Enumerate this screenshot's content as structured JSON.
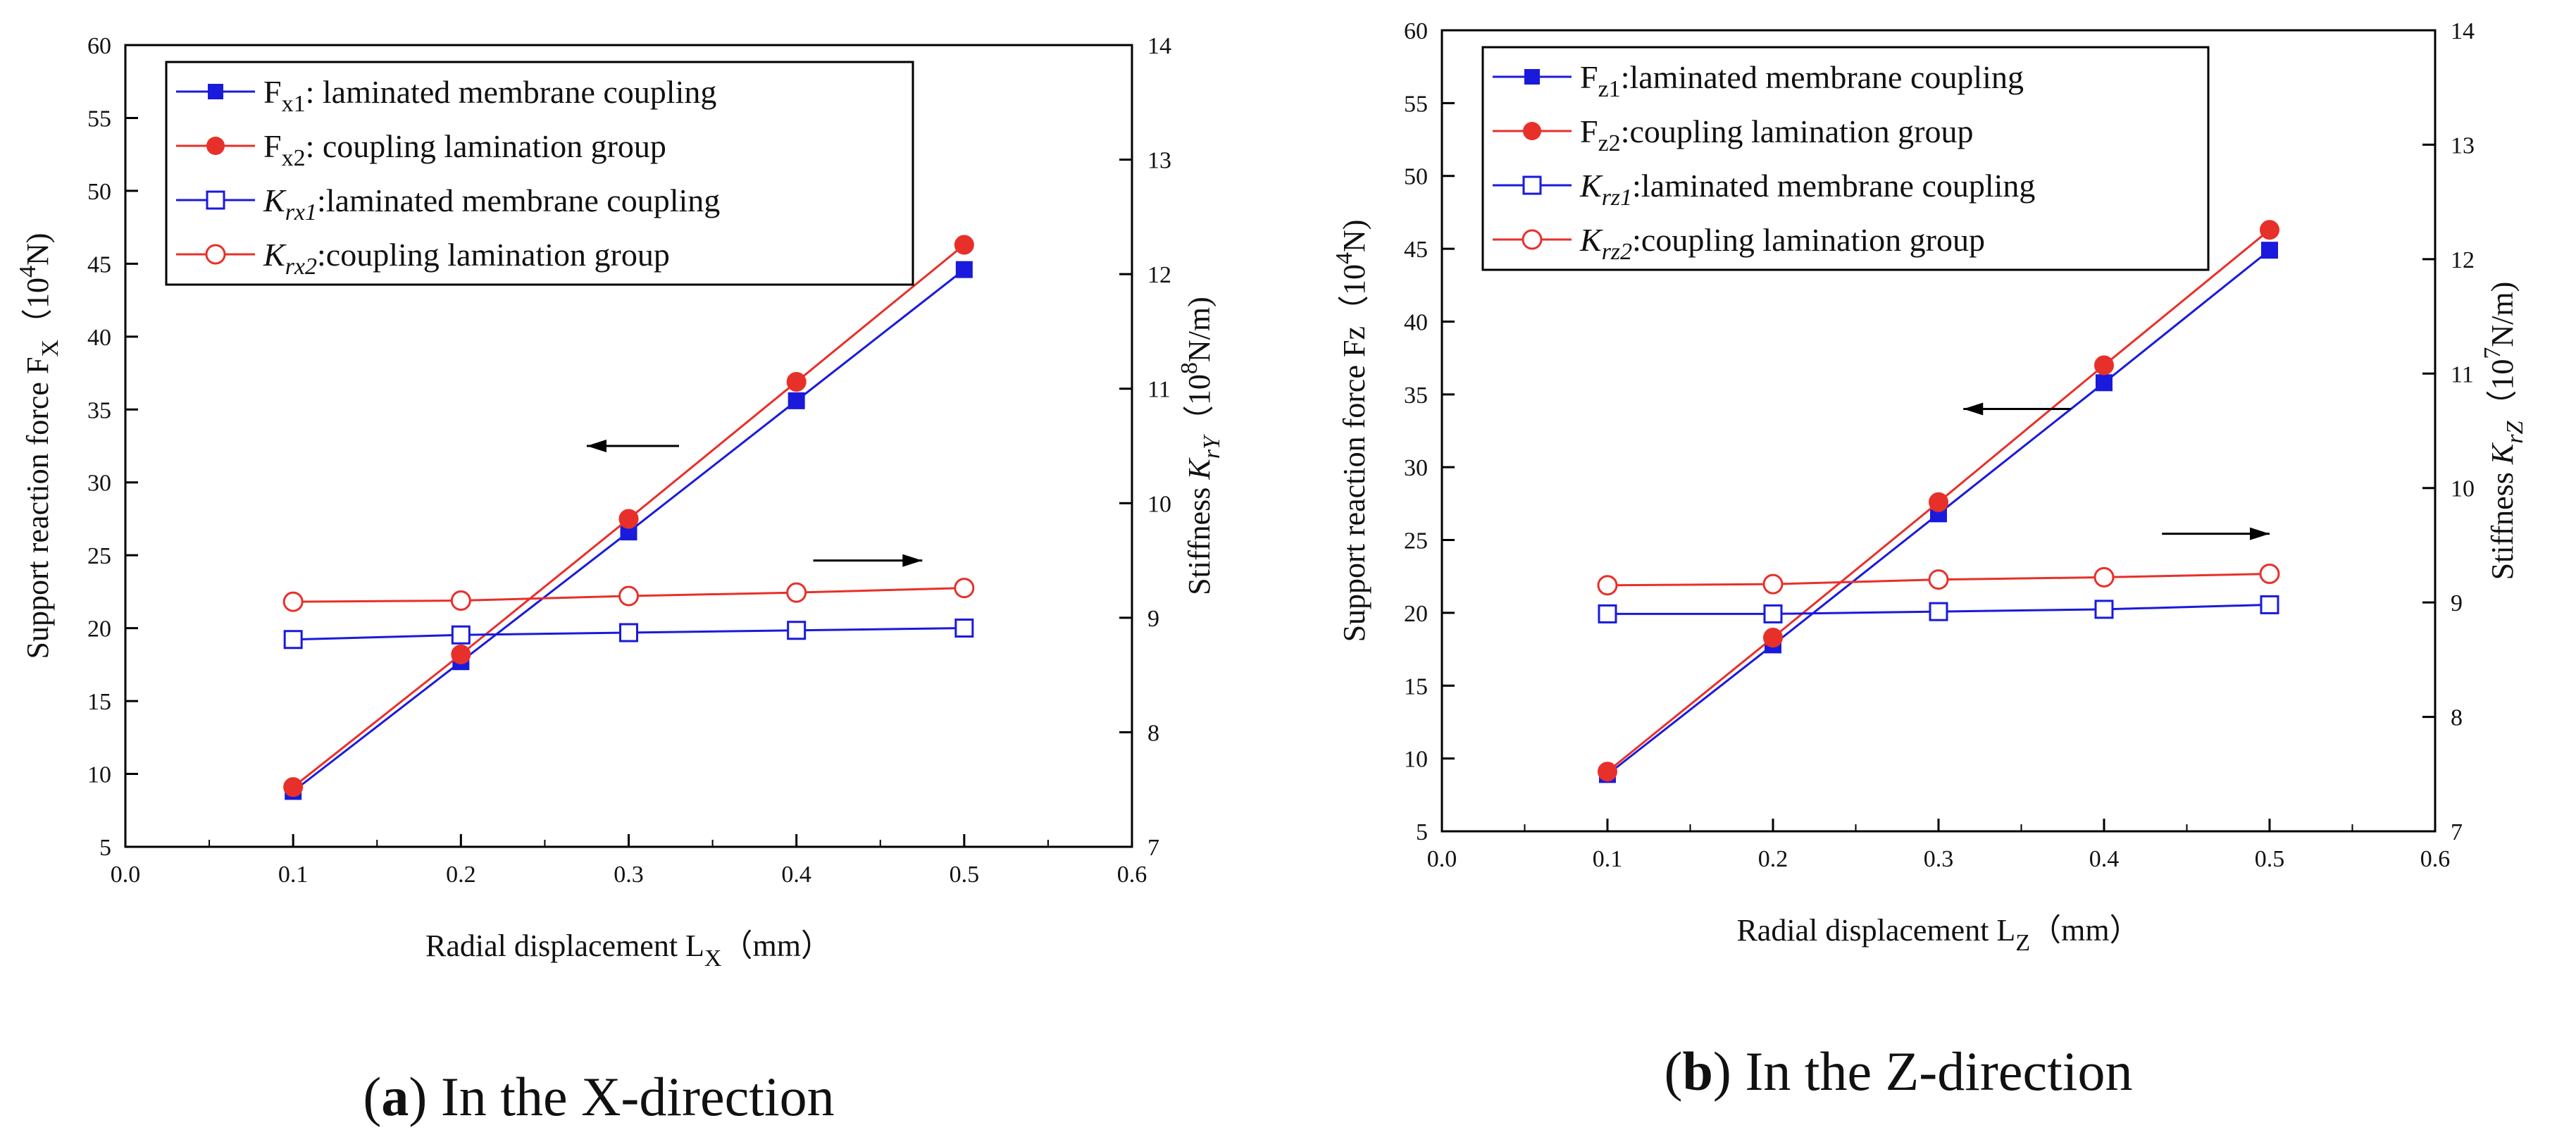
{
  "chart_data": [
    {
      "type": "line",
      "caption": {
        "letter": "a",
        "text": ") In the X-direction"
      },
      "xlabel": "Radial displacement L",
      "xlabel_sub": "X",
      "xlabel_unit": "（mm）",
      "xlim": [
        0.0,
        0.6
      ],
      "xticks": [
        "0.0",
        "0.1",
        "0.2",
        "0.3",
        "0.4",
        "0.5",
        "0.6"
      ],
      "ylabel_left": "Support reaction force F",
      "ylabel_left_sub": "X",
      "ylabel_left_unit": "（10",
      "ylabel_left_exp": "4",
      "ylabel_left_unit2": "N)",
      "ylim_left": [
        5,
        60
      ],
      "yticks_left": [
        "5",
        "10",
        "15",
        "20",
        "25",
        "30",
        "35",
        "40",
        "45",
        "50",
        "55",
        "60"
      ],
      "ylabel_right": "Stiffness K",
      "ylabel_right_sub": "rY",
      "ylabel_right_unit": "（10",
      "ylabel_right_exp": "8",
      "ylabel_right_unit2": "N/m)",
      "ylim_right": [
        7,
        14
      ],
      "yticks_right": [
        "7",
        "8",
        "9",
        "10",
        "11",
        "12",
        "13",
        "14"
      ],
      "x": [
        0.1,
        0.2,
        0.3,
        0.4,
        0.5
      ],
      "series": [
        {
          "name": "F",
          "sub": "x1",
          "rest": ": laminated membrane coupling",
          "italic": false,
          "axis": "left",
          "color": "#1a1adc",
          "marker": "square-filled",
          "values": [
            8.8,
            17.7,
            26.6,
            35.6,
            44.6
          ]
        },
        {
          "name": "F",
          "sub": "x2",
          "rest": ": coupling lamination group",
          "italic": false,
          "axis": "left",
          "color": "#e8302a",
          "marker": "circle-filled",
          "values": [
            9.1,
            18.2,
            27.5,
            36.9,
            46.3
          ]
        },
        {
          "name": "K",
          "sub": "rx1",
          "rest": ":laminated membrane coupling",
          "italic": true,
          "axis": "right",
          "color": "#1a1adc",
          "marker": "square-open",
          "values": [
            8.81,
            8.85,
            8.87,
            8.89,
            8.91
          ]
        },
        {
          "name": "K",
          "sub": "rx2",
          "rest": ":coupling lamination group",
          "italic": true,
          "axis": "right",
          "color": "#e8302a",
          "marker": "circle-open",
          "values": [
            9.14,
            9.15,
            9.19,
            9.22,
            9.26
          ]
        }
      ],
      "legend_position": "top-left",
      "annotation_arrows": [
        {
          "direction": "left",
          "x_from": 0.33,
          "x_to": 0.275,
          "y": 32.5,
          "axis": "left"
        },
        {
          "direction": "right",
          "x_from": 0.41,
          "x_to": 0.475,
          "y": 9.5,
          "axis": "right"
        }
      ]
    },
    {
      "type": "line",
      "caption": {
        "letter": "b",
        "text": ") In the Z-direction"
      },
      "xlabel": "Radial displacement L",
      "xlabel_sub": "Z",
      "xlabel_unit": "（mm）",
      "xlim": [
        0.0,
        0.6
      ],
      "xticks": [
        "0.0",
        "0.1",
        "0.2",
        "0.3",
        "0.4",
        "0.5",
        "0.6"
      ],
      "ylabel_left": "Support reaction force Fz",
      "ylabel_left_sub": "",
      "ylabel_left_unit": "（10",
      "ylabel_left_exp": "4",
      "ylabel_left_unit2": "N)",
      "ylim_left": [
        5,
        60
      ],
      "yticks_left": [
        "5",
        "10",
        "15",
        "20",
        "25",
        "30",
        "35",
        "40",
        "45",
        "50",
        "55",
        "60"
      ],
      "ylabel_right": "Stiffness K",
      "ylabel_right_sub": "rZ",
      "ylabel_right_unit": "（10",
      "ylabel_right_exp": "7",
      "ylabel_right_unit2": "N/m)",
      "ylim_right": [
        7,
        14
      ],
      "yticks_right": [
        "7",
        "8",
        "9",
        "10",
        "11",
        "12",
        "13",
        "14"
      ],
      "x": [
        0.1,
        0.2,
        0.3,
        0.4,
        0.5
      ],
      "series": [
        {
          "name": "F",
          "sub": "z1",
          "rest": ":laminated membrane coupling",
          "italic": false,
          "axis": "left",
          "color": "#1a1adc",
          "marker": "square-filled",
          "values": [
            8.9,
            17.8,
            26.8,
            35.8,
            44.9
          ]
        },
        {
          "name": "F",
          "sub": "z2",
          "rest": ":coupling lamination group",
          "italic": false,
          "axis": "left",
          "color": "#e8302a",
          "marker": "circle-filled",
          "values": [
            9.1,
            18.3,
            27.6,
            37.0,
            46.3
          ]
        },
        {
          "name": "K",
          "sub": "rz1",
          "rest": ":laminated membrane coupling",
          "italic": true,
          "axis": "right",
          "color": "#1a1adc",
          "marker": "square-open",
          "values": [
            8.9,
            8.9,
            8.92,
            8.94,
            8.98
          ]
        },
        {
          "name": "K",
          "sub": "rz2",
          "rest": ":coupling lamination group",
          "italic": true,
          "axis": "right",
          "color": "#e8302a",
          "marker": "circle-open",
          "values": [
            9.15,
            9.16,
            9.2,
            9.22,
            9.25
          ]
        }
      ],
      "legend_position": "top-left",
      "annotation_arrows": [
        {
          "direction": "left",
          "x_from": 0.38,
          "x_to": 0.315,
          "y": 34.0,
          "axis": "left"
        },
        {
          "direction": "right",
          "x_from": 0.435,
          "x_to": 0.5,
          "y": 9.6,
          "axis": "right"
        }
      ]
    }
  ]
}
